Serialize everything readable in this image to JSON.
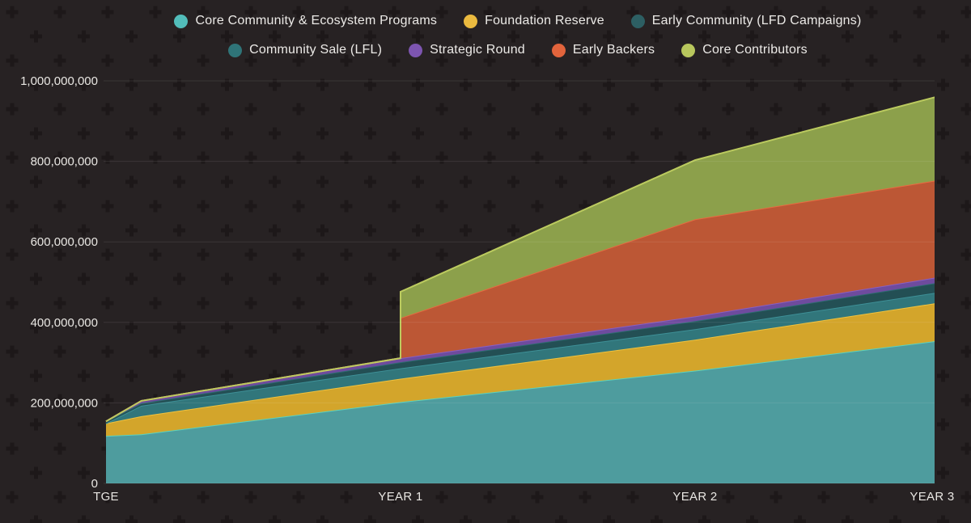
{
  "colors": {
    "background": "#272223",
    "pattern_plus": "#1D1819",
    "gridline": "rgba(255,255,255,0.09)",
    "text": "#E9E7E3"
  },
  "legend": {
    "rows": [
      {
        "items": [
          {
            "label": "Core Community & Ecosystem Programs",
            "color": "#52BDBA"
          },
          {
            "label": "Foundation Reserve",
            "color": "#EBBA3F"
          },
          {
            "label": "Early Community (LFD Campaigns)",
            "color": "#2D5F63"
          }
        ]
      },
      {
        "items": [
          {
            "label": "Community Sale (LFL)",
            "color": "#2F7478"
          },
          {
            "label": "Strategic Round",
            "color": "#7D55B0"
          },
          {
            "label": "Early Backers",
            "color": "#E2643C"
          },
          {
            "label": "Core Contributors",
            "color": "#B8C75D"
          }
        ]
      }
    ]
  },
  "chart_data": {
    "type": "area",
    "stacked": true,
    "title": "",
    "xlabel": "",
    "ylabel": "",
    "x_unit": "years since TGE",
    "x_years": [
      0,
      0.12,
      1,
      1,
      2,
      3
    ],
    "series": [
      {
        "key": "core_community",
        "name": "Core Community & Ecosystem Programs",
        "fill": "#4E9C9E",
        "stroke": "#5BD2BE",
        "values": [
          118000000,
          122000000,
          202000000,
          202000000,
          280000000,
          370000000
        ]
      },
      {
        "key": "foundation_reserve",
        "name": "Foundation Reserve",
        "fill": "#D3A52B",
        "stroke": "#F0C23E",
        "values": [
          31000000,
          45000000,
          58000000,
          58000000,
          77000000,
          98000000
        ]
      },
      {
        "key": "community_sale",
        "name": "Community Sale (LFL)",
        "fill": "#31767B",
        "stroke": "#3E9097",
        "values": [
          0,
          26000000,
          26000000,
          26000000,
          26000000,
          26000000
        ]
      },
      {
        "key": "early_community",
        "name": "Early Community (LFD Campaigns)",
        "fill": "#234F54",
        "stroke": "#2D6B70",
        "values": [
          5000000,
          6000000,
          15000000,
          15000000,
          20000000,
          25000000
        ]
      },
      {
        "key": "strategic_round",
        "name": "Strategic Round",
        "fill": "#6E4B9E",
        "stroke": "#8A5FC2",
        "values": [
          0,
          6000000,
          10000000,
          10000000,
          12000000,
          14000000
        ]
      },
      {
        "key": "early_backers",
        "name": "Early Backers",
        "fill": "#BC5735",
        "stroke": "#E76B41",
        "values": [
          0,
          0,
          0,
          100000000,
          241000000,
          241000000
        ]
      },
      {
        "key": "core_contributors",
        "name": "Core Contributors",
        "fill": "#8CA04B",
        "stroke": "#BCCB5F",
        "values": [
          0,
          0,
          0,
          65000000,
          147000000,
          221000000
        ]
      }
    ],
    "x_ticks": [
      {
        "t": 0,
        "label": "TGE"
      },
      {
        "t": 1,
        "label": "YEAR 1"
      },
      {
        "t": 2,
        "label": "YEAR 2"
      },
      {
        "t": 3,
        "label": "YEAR 3"
      }
    ],
    "y_ticks": [
      {
        "value": 0,
        "label": "0"
      },
      {
        "value": 200000000,
        "label": "200,000,000"
      },
      {
        "value": 400000000,
        "label": "400,000,000"
      },
      {
        "value": 600000000,
        "label": "600,000,000"
      },
      {
        "value": 800000000,
        "label": "800,000,000"
      },
      {
        "value": 1000000000,
        "label": "1,000,000,000"
      }
    ],
    "ylim": [
      0,
      1000000000
    ],
    "grid": "horizontal",
    "legend_position": "top"
  }
}
